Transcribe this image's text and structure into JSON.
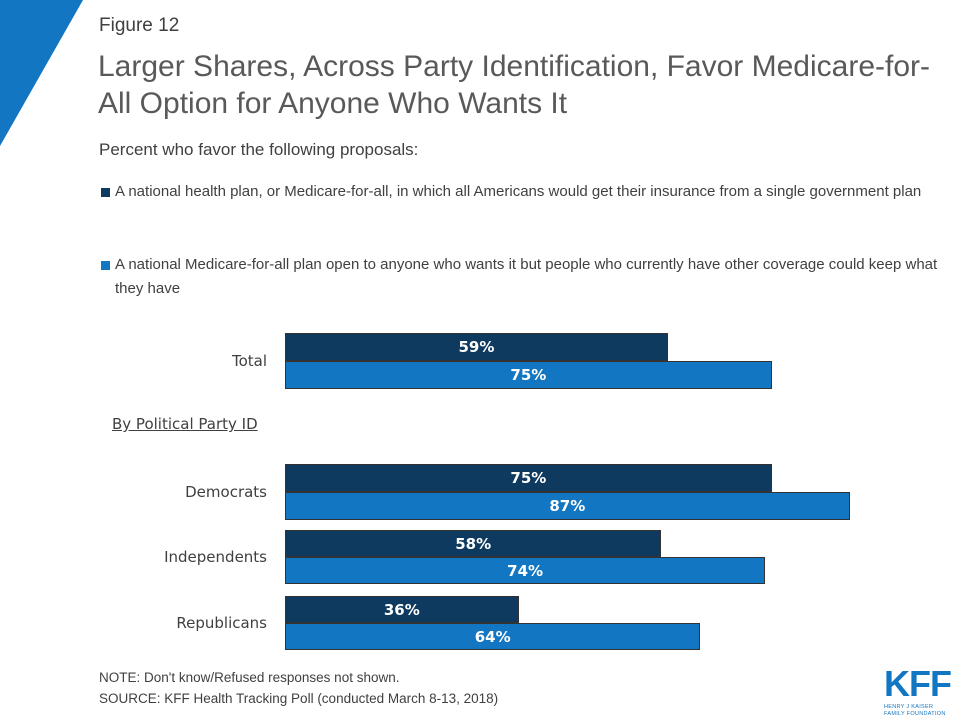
{
  "figure_label": "Figure 12",
  "colors": {
    "accent": "#1276c2",
    "series1": "#0d3a5e",
    "series2": "#1276c2"
  },
  "chart_data": {
    "type": "bar",
    "orientation": "horizontal",
    "title": "Larger Shares, Across Party Identification, Favor Medicare-for-All Option for Anyone Who Wants It",
    "subtitle": "Percent who favor the following proposals:",
    "categories": [
      "Total",
      "Democrats",
      "Independents",
      "Republicans"
    ],
    "group_label": "By Political Party ID",
    "series": [
      {
        "name": "A national health plan, or Medicare-for-all, in which all Americans would get their insurance from a single government plan",
        "values": [
          59,
          75,
          58,
          36
        ],
        "labels": [
          "59%",
          "75%",
          "58%",
          "36%"
        ]
      },
      {
        "name": "A national Medicare-for-all plan open to anyone who wants it but people who currently have other coverage could keep what they have",
        "values": [
          75,
          87,
          74,
          64
        ],
        "labels": [
          "75%",
          "87%",
          "74%",
          "64%"
        ]
      }
    ],
    "xlim": [
      0,
      100
    ],
    "grid": false,
    "legend_placement": "top-left"
  },
  "notes": {
    "note": "NOTE: Don't know/Refused responses not shown.",
    "source": "SOURCE: KFF Health Tracking Poll (conducted March 8-13, 2018)"
  },
  "logo": {
    "text": "KFF",
    "subtext1": "HENRY J KAISER",
    "subtext2": "FAMILY FOUNDATION"
  }
}
